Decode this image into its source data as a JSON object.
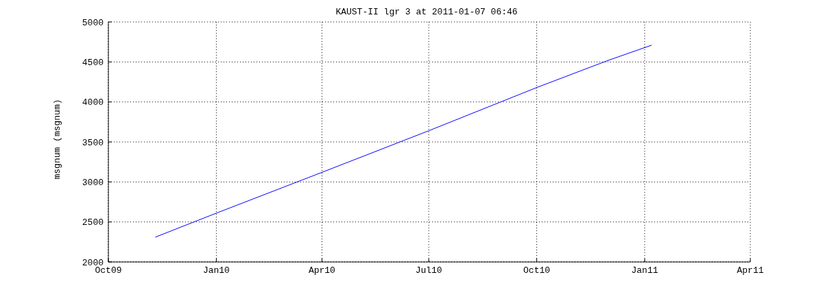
{
  "chart_data": {
    "type": "line",
    "title": "KAUST-II lgr 3 at 2011-01-07 06:46",
    "ylabel": "msgnum (msgnum)",
    "x": [
      "2009-11-10",
      "2010-01-01",
      "2010-04-01",
      "2010-07-01",
      "2010-10-01",
      "2010-12-01",
      "2011-01-07"
    ],
    "series": [
      {
        "color": "#0000ff",
        "values": [
          2310,
          2610,
          3120,
          3640,
          4180,
          4520,
          4710
        ]
      }
    ],
    "xlim": [
      "2009-10-01",
      "2011-04-01"
    ],
    "xticks": [
      {
        "value": "2009-10-01",
        "label": "Oct09"
      },
      {
        "value": "2010-01-01",
        "label": "Jan10"
      },
      {
        "value": "2010-04-01",
        "label": "Apr10"
      },
      {
        "value": "2010-07-01",
        "label": "Jul10"
      },
      {
        "value": "2010-10-01",
        "label": "Oct10"
      },
      {
        "value": "2011-01-01",
        "label": "Jan11"
      },
      {
        "value": "2011-04-01",
        "label": "Apr11"
      }
    ],
    "ylim": [
      2000,
      5000
    ],
    "yticks": [
      2000,
      2500,
      3000,
      3500,
      4000,
      4500,
      5000
    ],
    "grid": true,
    "legend": false,
    "marker": "none",
    "line_style": "solid"
  }
}
